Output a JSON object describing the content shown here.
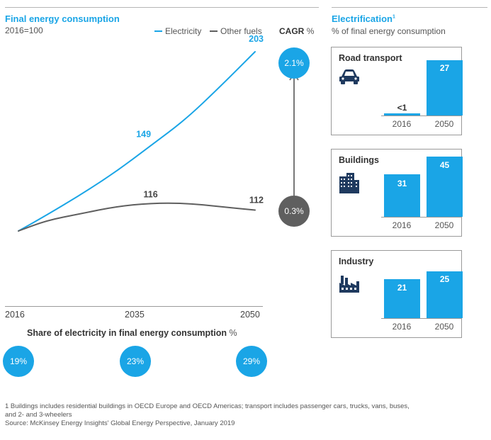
{
  "left": {
    "title": "Final energy consumption",
    "subtitle": "2016=100",
    "legend": [
      {
        "label": "Electricity",
        "color": "#1aa5e6"
      },
      {
        "label": "Other fuels",
        "color": "#5f5f5f"
      }
    ],
    "cagr_label": "CAGR",
    "cagr_unit": "%"
  },
  "share": {
    "title": "Share of electricity in final energy consumption",
    "unit": "%",
    "values": [
      "19%",
      "23%",
      "29%"
    ]
  },
  "right": {
    "title": "Electrification",
    "title_sup": "1",
    "subtitle": "% of final energy consumption",
    "panels": [
      {
        "title": "Road transport",
        "icon": "car-icon",
        "labels": [
          "<1",
          "27"
        ]
      },
      {
        "title": "Buildings",
        "icon": "buildings-icon",
        "labels": [
          "31",
          "45"
        ]
      },
      {
        "title": "Industry",
        "icon": "factory-icon",
        "labels": [
          "21",
          "25"
        ]
      }
    ]
  },
  "footnote": {
    "line1": "1 Buildings includes residential buildings in OECD Europe and OECD Americas; transport includes passenger cars, trucks, vans, buses,",
    "line2": "and 2- and 3-wheelers",
    "source": "Source: McKinsey Energy Insights' Global Energy Perspective, January 2019"
  },
  "chart_data": [
    {
      "type": "line",
      "title": "Final energy consumption",
      "subtitle": "2016=100",
      "x": [
        2016,
        2020,
        2025,
        2030,
        2035,
        2040,
        2045,
        2050
      ],
      "xticks": [
        "2016",
        "2035",
        "2050"
      ],
      "series": [
        {
          "name": "Electricity",
          "color": "#1aa5e6",
          "values": [
            100,
            109,
            121,
            134,
            149,
            164,
            183,
            203
          ],
          "cagr": "2.1%"
        },
        {
          "name": "Other fuels",
          "color": "#5f5f5f",
          "values": [
            100,
            106,
            110,
            114,
            116,
            116,
            114,
            112
          ],
          "cagr": "0.3%"
        }
      ],
      "annotations": [
        {
          "x": 2035,
          "series": "Electricity",
          "label": "149"
        },
        {
          "x": 2050,
          "series": "Electricity",
          "label": "203"
        },
        {
          "x": 2035,
          "series": "Other fuels",
          "label": "116"
        },
        {
          "x": 2050,
          "series": "Other fuels",
          "label": "112"
        }
      ],
      "ylim": [
        88,
        250
      ]
    },
    {
      "type": "bar",
      "title": "Road transport",
      "categories": [
        "2016",
        "2050"
      ],
      "values": [
        0.5,
        27
      ],
      "value_labels": [
        "<1",
        "27"
      ],
      "ylim": [
        0,
        27
      ]
    },
    {
      "type": "bar",
      "title": "Buildings",
      "categories": [
        "2016",
        "2050"
      ],
      "values": [
        31,
        45
      ],
      "value_labels": [
        "31",
        "45"
      ],
      "ylim": [
        0,
        45
      ]
    },
    {
      "type": "bar",
      "title": "Industry",
      "categories": [
        "2016",
        "2050"
      ],
      "values": [
        21,
        25
      ],
      "value_labels": [
        "21",
        "25"
      ],
      "ylim": [
        0,
        45
      ]
    }
  ]
}
